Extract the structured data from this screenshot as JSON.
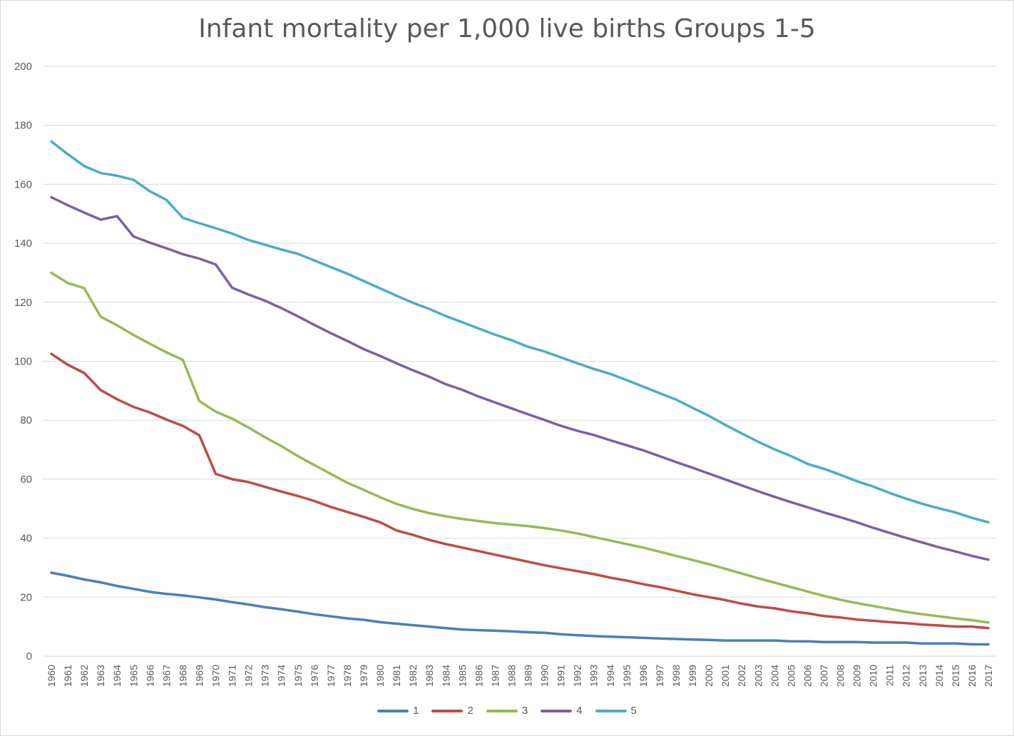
{
  "chart_data": {
    "type": "line",
    "title": "Infant mortality per 1,000 live births Groups 1-5",
    "xlabel": "",
    "ylabel": "",
    "ylim": [
      0,
      200
    ],
    "yticks": [
      0,
      20,
      40,
      60,
      80,
      100,
      120,
      140,
      160,
      180,
      200
    ],
    "grid": true,
    "legend_position": "bottom",
    "x": [
      "1960",
      "1961",
      "1962",
      "1963",
      "1964",
      "1965",
      "1966",
      "1967",
      "1968",
      "1969",
      "1970",
      "1971",
      "1972",
      "1973",
      "1974",
      "1975",
      "1976",
      "1977",
      "1978",
      "1979",
      "1980",
      "1981",
      "1982",
      "1983",
      "1984",
      "1985",
      "1986",
      "1987",
      "1988",
      "1989",
      "1990",
      "1991",
      "1992",
      "1993",
      "1994",
      "1995",
      "1996",
      "1997",
      "1998",
      "1999",
      "2000",
      "2001",
      "2002",
      "2003",
      "2004",
      "2005",
      "2006",
      "2007",
      "2008",
      "2009",
      "2010",
      "2011",
      "2012",
      "2013",
      "2014",
      "2015",
      "2016",
      "2017"
    ],
    "series": [
      {
        "name": "1",
        "color": "#4a7ebb",
        "values": [
          28.3,
          27.2,
          26.0,
          25.0,
          23.8,
          22.8,
          21.8,
          21.1,
          20.6,
          19.9,
          19.2,
          18.3,
          17.5,
          16.6,
          15.9,
          15.1,
          14.2,
          13.5,
          12.8,
          12.3,
          11.5,
          11.0,
          10.5,
          10.0,
          9.5,
          9.0,
          8.8,
          8.6,
          8.4,
          8.1,
          7.9,
          7.4,
          7.1,
          6.8,
          6.6,
          6.4,
          6.2,
          6.0,
          5.8,
          5.6,
          5.5,
          5.3,
          5.3,
          5.3,
          5.3,
          5.0,
          5.0,
          4.8,
          4.8,
          4.8,
          4.6,
          4.6,
          4.6,
          4.3,
          4.3,
          4.3,
          4.0,
          4.0
        ]
      },
      {
        "name": "2",
        "color": "#be4b48",
        "values": [
          102.5,
          98.8,
          96.0,
          90.2,
          87.1,
          84.5,
          82.6,
          80.2,
          78.1,
          74.9,
          61.8,
          60.0,
          59.0,
          57.4,
          55.8,
          54.3,
          52.6,
          50.6,
          48.9,
          47.2,
          45.4,
          42.6,
          41.1,
          39.4,
          38.0,
          36.8,
          35.6,
          34.4,
          33.2,
          32.0,
          30.8,
          29.8,
          28.8,
          27.8,
          26.6,
          25.6,
          24.4,
          23.4,
          22.2,
          21.0,
          20.0,
          19.0,
          17.8,
          16.8,
          16.2,
          15.2,
          14.5,
          13.6,
          13.1,
          12.4,
          12.0,
          11.5,
          11.2,
          10.7,
          10.4,
          10.0,
          10.0,
          9.5
        ]
      },
      {
        "name": "3",
        "color": "#98b954",
        "values": [
          130.0,
          126.5,
          124.8,
          115.1,
          112.2,
          108.9,
          105.9,
          103.0,
          100.5,
          86.5,
          82.9,
          80.5,
          77.5,
          74.2,
          71.2,
          67.8,
          64.8,
          61.8,
          58.8,
          56.4,
          53.9,
          51.6,
          49.9,
          48.5,
          47.4,
          46.5,
          45.8,
          45.1,
          44.6,
          44.1,
          43.4,
          42.6,
          41.6,
          40.4,
          39.2,
          38.0,
          36.8,
          35.4,
          34.0,
          32.6,
          31.2,
          29.6,
          28.0,
          26.4,
          24.9,
          23.4,
          21.9,
          20.4,
          19.1,
          18.0,
          17.0,
          16.0,
          15.0,
          14.2,
          13.5,
          12.8,
          12.2,
          11.4
        ]
      },
      {
        "name": "4",
        "color": "#7d60a0",
        "values": [
          155.6,
          152.9,
          150.4,
          148.0,
          149.2,
          142.3,
          140.2,
          138.3,
          136.3,
          134.8,
          132.8,
          124.9,
          122.6,
          120.5,
          118.0,
          115.2,
          112.3,
          109.5,
          106.9,
          104.1,
          101.8,
          99.3,
          96.9,
          94.7,
          92.2,
          90.3,
          88.0,
          86.0,
          84.0,
          82.0,
          80.1,
          78.1,
          76.4,
          75.0,
          73.2,
          71.5,
          69.8,
          67.8,
          65.8,
          63.9,
          61.9,
          59.9,
          57.9,
          55.9,
          54.0,
          52.2,
          50.5,
          48.7,
          47.1,
          45.4,
          43.5,
          41.8,
          40.1,
          38.5,
          36.9,
          35.5,
          34.0,
          32.7
        ]
      },
      {
        "name": "5",
        "color": "#4bacc6",
        "values": [
          174.5,
          170.2,
          166.2,
          163.8,
          162.9,
          161.5,
          157.6,
          154.7,
          148.6,
          146.8,
          145.1,
          143.3,
          141.1,
          139.5,
          137.9,
          136.4,
          134.2,
          131.9,
          129.7,
          127.2,
          124.7,
          122.2,
          119.8,
          117.7,
          115.3,
          113.2,
          111.1,
          109.0,
          107.1,
          104.9,
          103.3,
          101.3,
          99.3,
          97.4,
          95.7,
          93.6,
          91.4,
          89.2,
          87.0,
          84.2,
          81.5,
          78.4,
          75.5,
          72.7,
          70.1,
          67.8,
          65.2,
          63.5,
          61.5,
          59.3,
          57.5,
          55.3,
          53.4,
          51.6,
          50.1,
          48.7,
          46.9,
          45.4
        ]
      }
    ]
  }
}
